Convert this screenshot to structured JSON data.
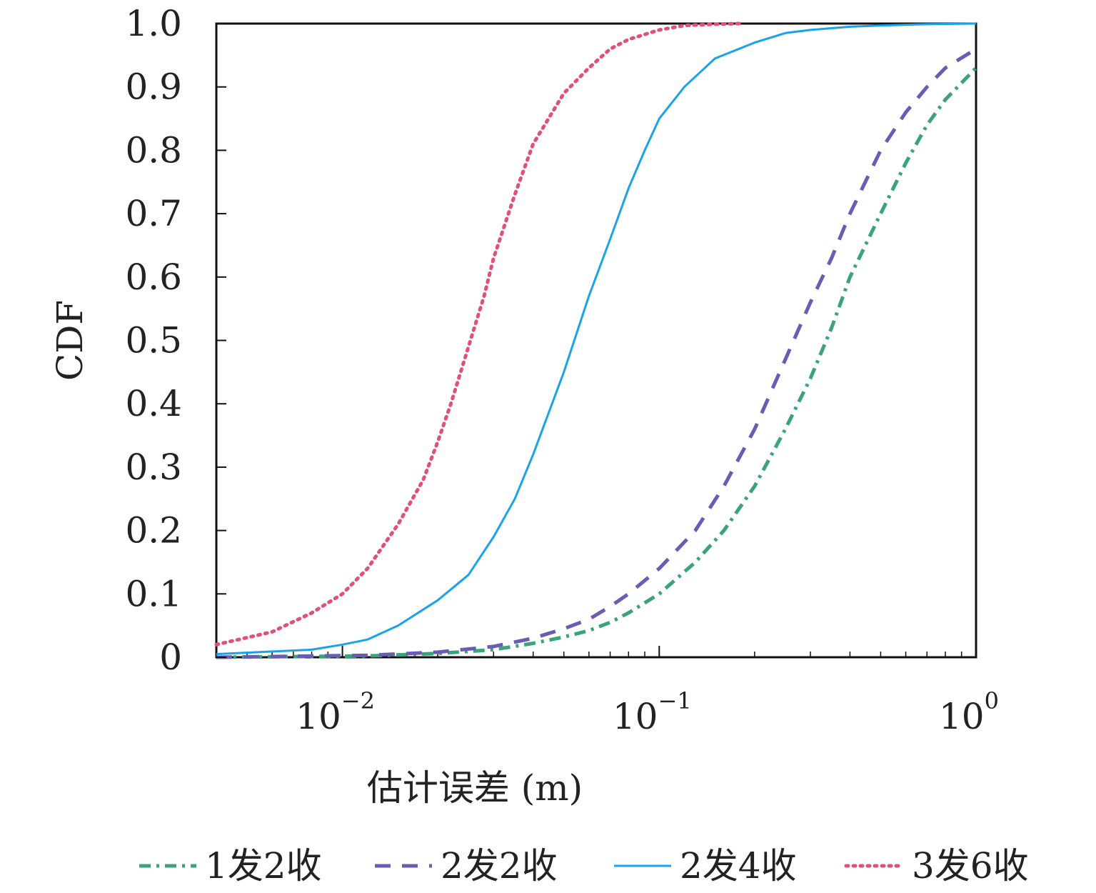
{
  "chart_data": {
    "type": "line",
    "xscale": "log",
    "xlim": [
      0.004,
      1
    ],
    "ylim": [
      0,
      1
    ],
    "xlabel": "估计误差 (m)",
    "ylabel": "CDF",
    "xticks": [
      {
        "value": 0.01,
        "base": "10",
        "exp": "−2"
      },
      {
        "value": 0.1,
        "base": "10",
        "exp": "−1"
      },
      {
        "value": 1,
        "base": "10",
        "exp": "0"
      }
    ],
    "yticks": [
      "0",
      "0.1",
      "0.2",
      "0.3",
      "0.4",
      "0.5",
      "0.6",
      "0.7",
      "0.8",
      "0.9",
      "1.0"
    ],
    "grid": false,
    "legend_position": "bottom",
    "series": [
      {
        "name": "1发2收",
        "color": "#3aa37a",
        "style": "dashdot",
        "x": [
          0.004,
          0.012,
          0.02,
          0.03,
          0.04,
          0.05,
          0.06,
          0.07,
          0.08,
          0.1,
          0.13,
          0.16,
          0.2,
          0.25,
          0.3,
          0.35,
          0.4,
          0.5,
          0.6,
          0.7,
          0.8,
          1.0
        ],
        "y": [
          0.0,
          0.002,
          0.006,
          0.012,
          0.022,
          0.032,
          0.042,
          0.055,
          0.07,
          0.1,
          0.15,
          0.2,
          0.27,
          0.36,
          0.44,
          0.52,
          0.6,
          0.7,
          0.78,
          0.84,
          0.88,
          0.93
        ]
      },
      {
        "name": "2发2收",
        "color": "#6a5cb5",
        "style": "dashed",
        "x": [
          0.004,
          0.012,
          0.02,
          0.03,
          0.04,
          0.05,
          0.06,
          0.07,
          0.08,
          0.1,
          0.13,
          0.16,
          0.2,
          0.25,
          0.3,
          0.35,
          0.4,
          0.5,
          0.6,
          0.7,
          0.8,
          1.0
        ],
        "y": [
          0.0,
          0.003,
          0.008,
          0.017,
          0.03,
          0.045,
          0.06,
          0.08,
          0.1,
          0.14,
          0.2,
          0.27,
          0.36,
          0.47,
          0.56,
          0.63,
          0.7,
          0.8,
          0.86,
          0.9,
          0.93,
          0.96
        ]
      },
      {
        "name": "2发4收",
        "color": "#1aa3e8",
        "style": "solid",
        "x": [
          0.004,
          0.008,
          0.01,
          0.012,
          0.015,
          0.02,
          0.025,
          0.03,
          0.035,
          0.04,
          0.05,
          0.06,
          0.07,
          0.08,
          0.09,
          0.1,
          0.12,
          0.15,
          0.2,
          0.25,
          0.3,
          0.4,
          0.5,
          0.7,
          1.0
        ],
        "y": [
          0.005,
          0.012,
          0.02,
          0.028,
          0.05,
          0.09,
          0.13,
          0.19,
          0.25,
          0.32,
          0.45,
          0.57,
          0.66,
          0.74,
          0.8,
          0.85,
          0.9,
          0.945,
          0.97,
          0.985,
          0.99,
          0.995,
          0.997,
          0.999,
          1.0
        ]
      },
      {
        "name": "3发6收",
        "color": "#e0507a",
        "style": "dotted",
        "x": [
          0.004,
          0.006,
          0.008,
          0.01,
          0.012,
          0.015,
          0.018,
          0.02,
          0.022,
          0.025,
          0.028,
          0.03,
          0.035,
          0.04,
          0.05,
          0.06,
          0.07,
          0.08,
          0.1,
          0.12,
          0.15,
          0.18
        ],
        "y": [
          0.02,
          0.04,
          0.07,
          0.1,
          0.14,
          0.21,
          0.28,
          0.34,
          0.4,
          0.49,
          0.57,
          0.63,
          0.73,
          0.81,
          0.89,
          0.93,
          0.96,
          0.975,
          0.99,
          0.997,
          0.999,
          1.0
        ]
      }
    ]
  }
}
